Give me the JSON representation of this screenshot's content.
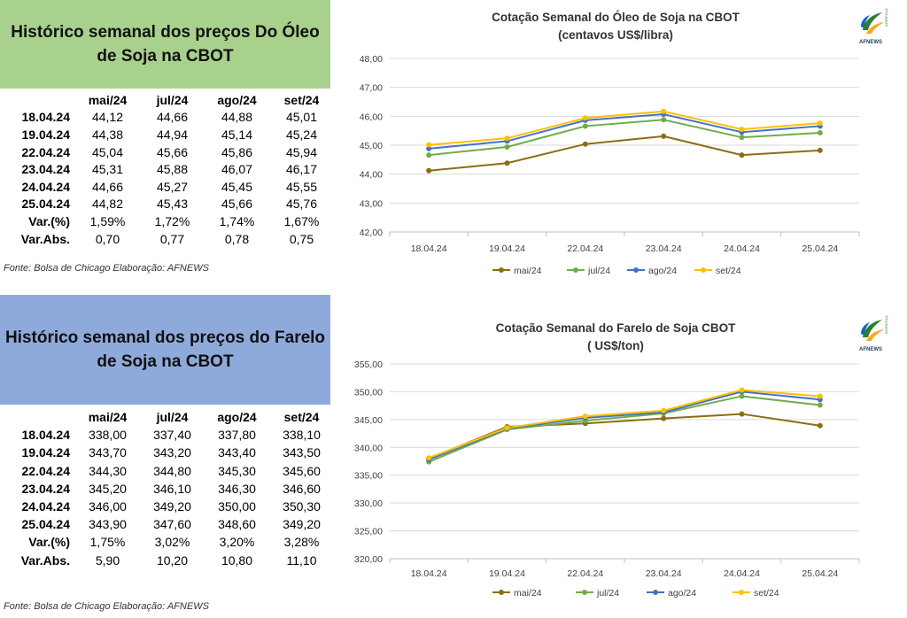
{
  "oil": {
    "panel_title": "Histórico semanal dos preços Do Óleo\nde Soja na CBOT",
    "headers": [
      "mai/24",
      "jul/24",
      "ago/24",
      "set/24"
    ],
    "rows": [
      {
        "label": "18.04.24",
        "values": [
          "44,12",
          "44,66",
          "44,88",
          "45,01"
        ]
      },
      {
        "label": "19.04.24",
        "values": [
          "44,38",
          "44,94",
          "45,14",
          "45,24"
        ]
      },
      {
        "label": "22.04.24",
        "values": [
          "45,04",
          "45,66",
          "45,86",
          "45,94"
        ]
      },
      {
        "label": "23.04.24",
        "values": [
          "45,31",
          "45,88",
          "46,07",
          "46,17"
        ]
      },
      {
        "label": "24.04.24",
        "values": [
          "44,66",
          "45,27",
          "45,45",
          "45,55"
        ]
      },
      {
        "label": "25.04.24",
        "values": [
          "44,82",
          "45,43",
          "45,66",
          "45,76"
        ]
      },
      {
        "label": "Var.(%)",
        "values": [
          "1,59%",
          "1,72%",
          "1,74%",
          "1,67%"
        ]
      },
      {
        "label": "Var.Abs.",
        "values": [
          "0,70",
          "0,77",
          "0,78",
          "0,75"
        ]
      }
    ],
    "source": "Fonte: Bolsa de Chicago Elaboração: AFNEWS",
    "chart_title": "Cotação Semanal do Óleo de Soja na CBOT",
    "chart_subtitle": "(centavos US$/libra)",
    "logo_text": "AFNEWS",
    "logo_subtext": "AGRÍCOLA"
  },
  "meal": {
    "panel_title": "Histórico semanal dos preços do Farelo\nde Soja na CBOT",
    "headers": [
      "mai/24",
      "jul/24",
      "ago/24",
      "set/24"
    ],
    "rows": [
      {
        "label": "18.04.24",
        "values": [
          "338,00",
          "337,40",
          "337,80",
          "338,10"
        ]
      },
      {
        "label": "19.04.24",
        "values": [
          "343,70",
          "343,20",
          "343,40",
          "343,50"
        ]
      },
      {
        "label": "22.04.24",
        "values": [
          "344,30",
          "344,80",
          "345,30",
          "345,60"
        ]
      },
      {
        "label": "23.04.24",
        "values": [
          "345,20",
          "346,10",
          "346,30",
          "346,60"
        ]
      },
      {
        "label": "24.04.24",
        "values": [
          "346,00",
          "349,20",
          "350,00",
          "350,30"
        ]
      },
      {
        "label": "25.04.24",
        "values": [
          "343,90",
          "347,60",
          "348,60",
          "349,20"
        ]
      },
      {
        "label": "Var.(%)",
        "values": [
          "1,75%",
          "3,02%",
          "3,20%",
          "3,28%"
        ]
      },
      {
        "label": "Var.Abs.",
        "values": [
          "5,90",
          "10,20",
          "10,80",
          "11,10"
        ]
      }
    ],
    "source": "Fonte: Bolsa de Chicago Elaboração: AFNEWS",
    "chart_title": "Cotação Semanal do Farelo de Soja CBOT",
    "chart_subtitle": "( US$/ton)",
    "logo_text": "AFNEWS",
    "logo_subtext": "AGRÍCOLA"
  },
  "colors": {
    "oil_panel": "#a9d18e",
    "meal_panel": "#8eaadb",
    "mai": "#8c6d12",
    "jul": "#70ad47",
    "ago": "#4472c4",
    "set": "#ffc000"
  },
  "chart_data": [
    {
      "type": "line",
      "title": "Cotação Semanal do Óleo de Soja na CBOT",
      "subtitle": "(centavos US$/libra)",
      "x": [
        "18.04.24",
        "19.04.24",
        "22.04.24",
        "23.04.24",
        "24.04.24",
        "25.04.24"
      ],
      "series": [
        {
          "name": "mai/24",
          "values": [
            44.12,
            44.38,
            45.04,
            45.31,
            44.66,
            44.82
          ],
          "color": "#8c6d12"
        },
        {
          "name": "jul/24",
          "values": [
            44.66,
            44.94,
            45.66,
            45.88,
            45.27,
            45.43
          ],
          "color": "#70ad47"
        },
        {
          "name": "ago/24",
          "values": [
            44.88,
            45.14,
            45.86,
            46.07,
            45.45,
            45.66
          ],
          "color": "#4472c4"
        },
        {
          "name": "set/24",
          "values": [
            45.01,
            45.24,
            45.94,
            46.17,
            45.55,
            45.76
          ],
          "color": "#ffc000"
        }
      ],
      "ylim": [
        42,
        48
      ],
      "yticks": [
        "42,00",
        "43,00",
        "44,00",
        "45,00",
        "46,00",
        "47,00",
        "48,00"
      ],
      "grid": true,
      "legend": "bottom"
    },
    {
      "type": "line",
      "title": "Cotação Semanal do Farelo de Soja CBOT",
      "subtitle": "( US$/ton)",
      "x": [
        "18.04.24",
        "19.04.24",
        "22.04.24",
        "23.04.24",
        "24.04.24",
        "25.04.24"
      ],
      "series": [
        {
          "name": "mai/24",
          "values": [
            338.0,
            343.7,
            344.3,
            345.2,
            346.0,
            343.9
          ],
          "color": "#8c6d12"
        },
        {
          "name": "jul/24",
          "values": [
            337.4,
            343.2,
            344.8,
            346.1,
            349.2,
            347.6
          ],
          "color": "#70ad47"
        },
        {
          "name": "ago/24",
          "values": [
            337.8,
            343.4,
            345.3,
            346.3,
            350.0,
            348.6
          ],
          "color": "#4472c4"
        },
        {
          "name": "set/24",
          "values": [
            338.1,
            343.5,
            345.6,
            346.6,
            350.3,
            349.2
          ],
          "color": "#ffc000"
        }
      ],
      "ylim": [
        320,
        355
      ],
      "yticks": [
        "320,00",
        "325,00",
        "330,00",
        "335,00",
        "340,00",
        "345,00",
        "350,00",
        "355,00"
      ],
      "grid": true,
      "legend": "bottom"
    }
  ]
}
